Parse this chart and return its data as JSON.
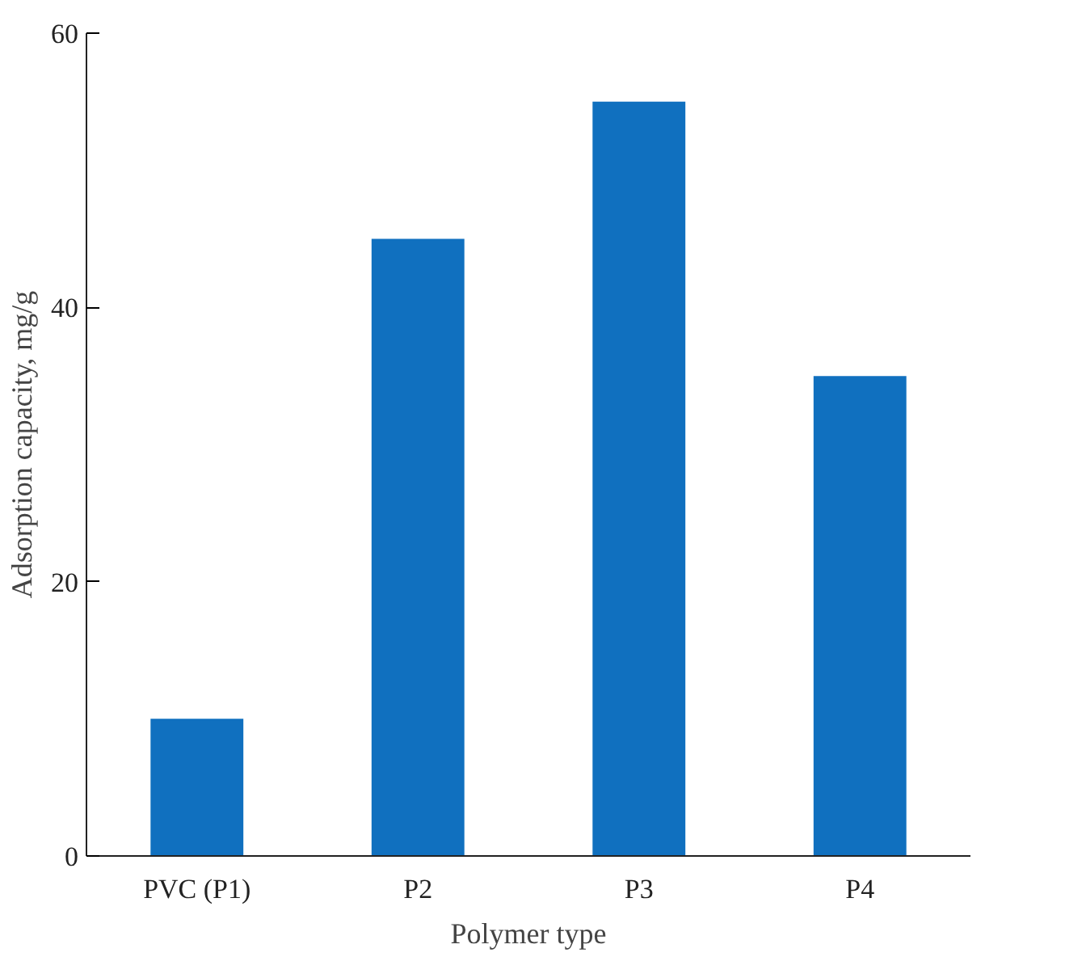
{
  "chart_data": {
    "type": "bar",
    "xlabel": "Polymer type",
    "ylabel": "Adsorption capacity, mg/g",
    "categories": [
      "PVC (P1)",
      "P2",
      "P3",
      "P4"
    ],
    "values": [
      10,
      45,
      55,
      35
    ],
    "color": "#1070bf",
    "ylim": [
      0,
      60
    ],
    "yticks": [
      0,
      20,
      40,
      60
    ],
    "grid": false
  }
}
